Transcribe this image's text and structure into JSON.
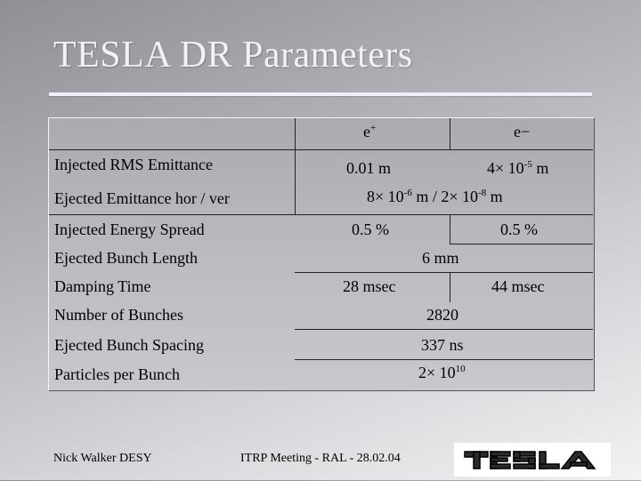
{
  "title": "TESLA DR Parameters",
  "columns": {
    "e_plus_base": "e",
    "e_plus_sup": "+",
    "e_minus": "e−"
  },
  "rows": [
    {
      "label": "Injected RMS Emittance",
      "e_plus": "0.01 m",
      "e_minus_base": "4× 10",
      "e_minus_sup": "-5",
      "e_minus_unit": " m"
    },
    {
      "label": "Ejected Emittance hor / ver",
      "span_a": "8× 10",
      "span_a_sup": "-6",
      "span_b": " m / 2× 10",
      "span_b_sup": "-8",
      "span_c": " m"
    },
    {
      "label": "Injected Energy Spread",
      "e_plus": "0.5 %",
      "e_minus": "0.5 %"
    },
    {
      "label": "Ejected Bunch Length",
      "span": "6 mm"
    },
    {
      "label": "Damping Time",
      "e_plus": "28 msec",
      "e_minus": "44 msec"
    },
    {
      "label": "Number of Bunches",
      "span": "2820"
    },
    {
      "label": "Ejected Bunch Spacing",
      "span": "337 ns"
    },
    {
      "label": "Particles per Bunch",
      "span_base": "2× 10",
      "span_sup": "10"
    }
  ],
  "footer": {
    "author": "Nick Walker DESY",
    "meeting": "ITRP Meeting - RAL - 28.02.04",
    "logo_text": "TESLA"
  }
}
